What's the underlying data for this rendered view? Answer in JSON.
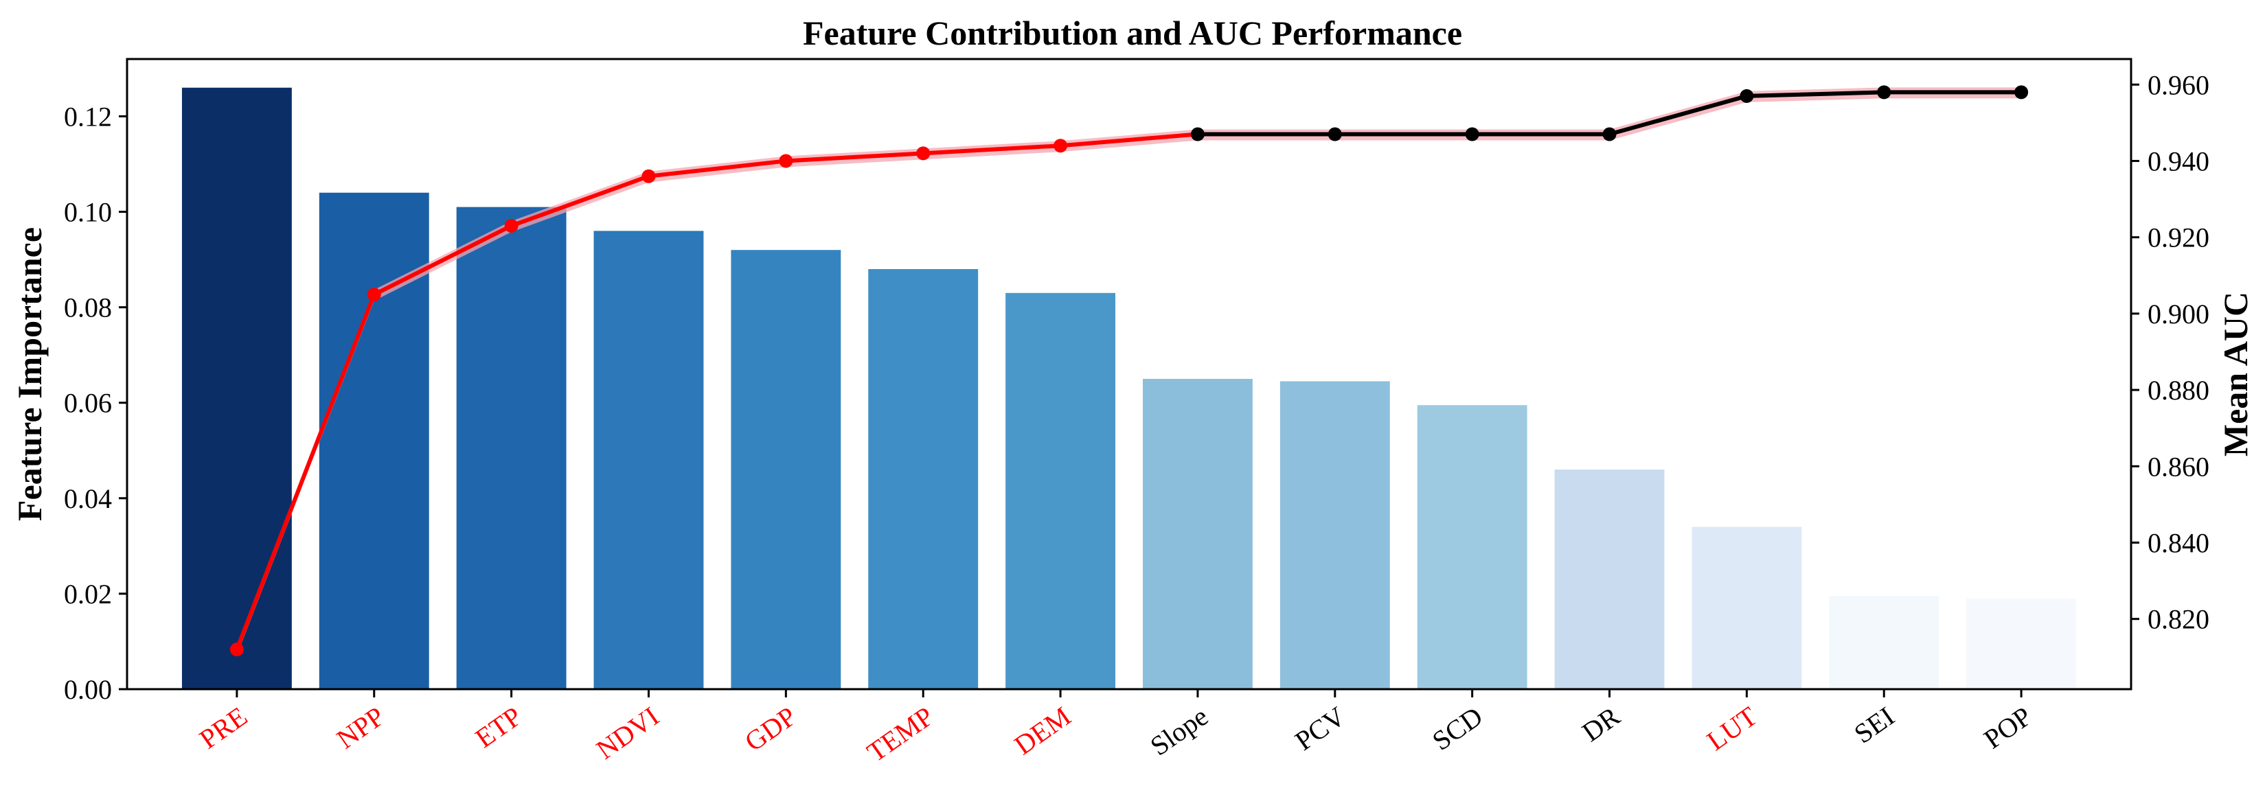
{
  "chart_data": {
    "type": "bar+line",
    "title": "Feature Contribution and AUC Performance",
    "ylabel_left": "Feature Importance",
    "ylabel_right": "Mean AUC",
    "ylim_left": [
      0,
      0.132
    ],
    "ylim_right": [
      0.8016,
      0.9667
    ],
    "yticks_left": [
      "0.00",
      "0.02",
      "0.04",
      "0.06",
      "0.08",
      "0.10",
      "0.12"
    ],
    "yticks_left_values": [
      0,
      0.02,
      0.04,
      0.06,
      0.08,
      0.1,
      0.12
    ],
    "yticks_right": [
      "0.820",
      "0.840",
      "0.860",
      "0.880",
      "0.900",
      "0.920",
      "0.940",
      "0.960"
    ],
    "yticks_right_values": [
      0.82,
      0.84,
      0.86,
      0.88,
      0.9,
      0.92,
      0.94,
      0.96
    ],
    "categories": [
      "PRE",
      "NPP",
      "ETP",
      "NDVI",
      "GDP",
      "TEMP",
      "DEM",
      "Slope",
      "PCV",
      "SCD",
      "DR",
      "LUT",
      "SEI",
      "POP"
    ],
    "category_colors": [
      "#ff0000",
      "#ff0000",
      "#ff0000",
      "#ff0000",
      "#ff0000",
      "#ff0000",
      "#ff0000",
      "#000000",
      "#000000",
      "#000000",
      "#000000",
      "#ff0000",
      "#000000",
      "#000000"
    ],
    "importance": [
      0.126,
      0.104,
      0.101,
      0.096,
      0.092,
      0.088,
      0.083,
      0.065,
      0.0645,
      0.0595,
      0.046,
      0.034,
      0.0195,
      0.019
    ],
    "bar_colors": [
      "#0b2e67",
      "#1a5ea6",
      "#1f66ad",
      "#2c78b8",
      "#3584c0",
      "#3f8fc6",
      "#4a98c9",
      "#8bbedb",
      "#8ebfdc",
      "#9dcae1",
      "#c8dbef",
      "#dde9f6",
      "#f3f8fd",
      "#f5f9fe"
    ],
    "auc": [
      0.812,
      0.905,
      0.923,
      0.936,
      0.94,
      0.942,
      0.944,
      0.947,
      0.947,
      0.947,
      0.947,
      0.957,
      0.958,
      0.958
    ],
    "auc_point_colors": [
      "#ff0000",
      "#ff0000",
      "#ff0000",
      "#ff0000",
      "#ff0000",
      "#ff0000",
      "#ff0000",
      "#000000",
      "#000000",
      "#000000",
      "#000000",
      "#000000",
      "#000000",
      "#000000"
    ],
    "auc_band_color": "#f4a6b0",
    "grid": false,
    "legend": "none"
  }
}
